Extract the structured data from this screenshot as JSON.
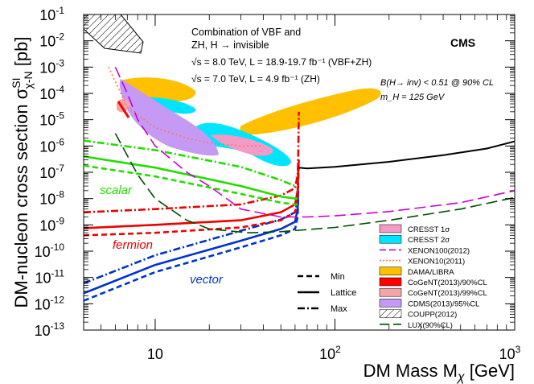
{
  "chart_data": {
    "type": "line",
    "title": "CMS",
    "xlabel": "DM Mass M_χ [GeV]",
    "ylabel": "DM-nucleon cross section σ^SI_χ-N [pb]",
    "xscale": "log",
    "yscale": "log",
    "xlim": [
      4,
      1000
    ],
    "ylim": [
      1e-13,
      0.1
    ],
    "x_ticks": [
      {
        "value": 10,
        "label": "10"
      },
      {
        "value": 100,
        "label": "10",
        "exp": "2"
      },
      {
        "value": 1000,
        "label": "10",
        "exp": "3"
      }
    ],
    "y_ticks": [
      {
        "value": 0.1,
        "exp": "-1"
      },
      {
        "value": 0.01,
        "exp": "-2"
      },
      {
        "value": 0.001,
        "exp": "-3"
      },
      {
        "value": 0.0001,
        "exp": "-4"
      },
      {
        "value": 1e-05,
        "exp": "-5"
      },
      {
        "value": 1e-06,
        "exp": "-6"
      },
      {
        "value": 1e-07,
        "exp": "-7"
      },
      {
        "value": 1e-08,
        "exp": "-8"
      },
      {
        "value": 1e-09,
        "exp": "-9"
      },
      {
        "value": 1e-10,
        "exp": "-10"
      },
      {
        "value": 1e-11,
        "exp": "-11"
      },
      {
        "value": 1e-12,
        "exp": "-12"
      },
      {
        "value": 1e-13,
        "exp": "-13"
      }
    ],
    "annotations": {
      "combo_line1": "Combination of VBF and",
      "combo_line2": "ZH, H → invisible",
      "energy8": "√s = 8.0 TeV, L = 18.9-19.7 fb⁻¹ (VBF+ZH)",
      "energy7": "√s = 7.0 TeV, L = 4.9 fb⁻¹ (ZH)",
      "bf": "B(H→ inv) < 0.51 @ 90% CL",
      "mh": "m_H = 125 GeV",
      "scalar": "scalar",
      "fermion": "fermion",
      "vector": "vector"
    },
    "style_legend": [
      {
        "name": "Min",
        "dash": "dashed"
      },
      {
        "name": "Lattice",
        "dash": "solid"
      },
      {
        "name": "Max",
        "dash": "dashdot"
      }
    ],
    "legend": [
      {
        "name": "CRESST 1σ",
        "kind": "box",
        "color": "#f39bc6"
      },
      {
        "name": "CRESST 2σ",
        "kind": "box",
        "color": "#00e5ff"
      },
      {
        "name": "XENON100(2012)",
        "kind": "dashline",
        "color": "#cc00cc"
      },
      {
        "name": "XENON10(2011)",
        "kind": "dotline",
        "color": "#ff7755"
      },
      {
        "name": "DAMA/LIBRA",
        "kind": "box",
        "color": "#ffc000"
      },
      {
        "name": "CoGeNT(2013)/90%CL",
        "kind": "box",
        "color": "#ff0000"
      },
      {
        "name": "CoGeNT(2013)/99%CL",
        "kind": "box",
        "color": "#f4a6a6"
      },
      {
        "name": "CDMS(2013)/95%CL",
        "kind": "box",
        "color": "#c49af5"
      },
      {
        "name": "COUPP(2012)",
        "kind": "hatch",
        "color": "#000000"
      },
      {
        "name": "LUX(90%CL)",
        "kind": "longdash",
        "color": "#004d00"
      }
    ],
    "series": [
      {
        "name": "vector lattice",
        "color": "#0033cc",
        "dash": "solid",
        "x": [
          4,
          10,
          30,
          50,
          60,
          62,
          62.5
        ],
        "y": [
          2.5e-12,
          3e-11,
          2.5e-10,
          7e-10,
          1.3e-09,
          4e-09,
          2e-08
        ]
      },
      {
        "name": "vector min",
        "color": "#0033cc",
        "dash": "dashed",
        "x": [
          4,
          10,
          30,
          50,
          60,
          62,
          62.5
        ],
        "y": [
          1.3e-12,
          1.6e-11,
          1.4e-10,
          4e-10,
          7e-10,
          2e-09,
          1e-08
        ]
      },
      {
        "name": "vector max",
        "color": "#0033cc",
        "dash": "dashdot",
        "x": [
          4,
          10,
          30,
          50,
          60,
          62,
          62.5
        ],
        "y": [
          6e-12,
          7e-11,
          6e-10,
          1.6e-09,
          3e-09,
          9e-09,
          5e-08
        ]
      },
      {
        "name": "fermion lattice",
        "color": "#ee0000",
        "dash": "solid",
        "x": [
          4,
          10,
          30,
          50,
          60,
          62,
          62.5,
          63
        ],
        "y": [
          7.5e-10,
          1e-09,
          1.5e-09,
          3e-09,
          6e-09,
          2e-08,
          1e-07,
          3e-07
        ]
      },
      {
        "name": "fermion min",
        "color": "#ee0000",
        "dash": "dashed",
        "x": [
          4,
          10,
          30,
          50,
          60,
          62,
          62.5,
          63
        ],
        "y": [
          4e-10,
          5e-10,
          8e-10,
          1.5e-09,
          3e-09,
          1e-08,
          5e-08,
          1.5e-07
        ]
      },
      {
        "name": "fermion max",
        "color": "#ee0000",
        "dash": "dashdot",
        "x": [
          4,
          10,
          30,
          50,
          60,
          62,
          62.5,
          63
        ],
        "y": [
          3e-09,
          4e-09,
          6e-09,
          1.3e-08,
          2.5e-08,
          8e-08,
          4e-07,
          2e-05
        ]
      },
      {
        "name": "scalar lattice",
        "color": "#22dd00",
        "dash": "solid",
        "x": [
          4,
          10,
          30,
          50,
          60,
          62
        ],
        "y": [
          4e-07,
          1.5e-07,
          3e-08,
          1.2e-08,
          1e-08,
          1e-08
        ]
      },
      {
        "name": "scalar min",
        "color": "#22dd00",
        "dash": "dashed",
        "x": [
          4,
          10,
          30,
          50,
          60,
          62
        ],
        "y": [
          1.8e-07,
          7e-08,
          1.5e-08,
          7e-09,
          6e-09,
          6e-09
        ]
      },
      {
        "name": "scalar max",
        "color": "#22dd00",
        "dash": "dashdot",
        "x": [
          4,
          10,
          30,
          50,
          60,
          62
        ],
        "y": [
          1.6e-06,
          7e-07,
          1.6e-07,
          5e-08,
          3e-08,
          3e-08
        ]
      },
      {
        "name": "CMS combination limit",
        "color": "#000000",
        "dash": "solid",
        "x": [
          63,
          70,
          100,
          200,
          400,
          700,
          1000
        ],
        "y": [
          1.5e-07,
          1.4e-07,
          1.6e-07,
          2.5e-07,
          4.5e-07,
          8e-07,
          1.5e-06
        ]
      },
      {
        "name": "XENON100(2012)",
        "color": "#cc00cc",
        "dash": "longdash",
        "x": [
          6,
          7,
          8,
          10,
          15,
          20,
          30,
          50,
          70,
          100,
          200,
          500,
          1000
        ],
        "y": [
          0.001,
          0.0001,
          1e-05,
          1e-06,
          1e-07,
          3e-08,
          4e-09,
          2e-09,
          2e-09,
          2.2e-09,
          3.2e-09,
          7e-09,
          2e-08
        ]
      },
      {
        "name": "XENON10(2011)",
        "color": "#ff7755",
        "dash": "dotted",
        "x": [
          5.5,
          7,
          10,
          15,
          20,
          30,
          40
        ],
        "y": [
          0.001,
          3e-05,
          5e-06,
          2e-06,
          1.3e-06,
          1e-06,
          1e-06
        ]
      },
      {
        "name": "LUX(90%CL)",
        "color": "#004d00",
        "dash": "longdash",
        "x": [
          6,
          8,
          10,
          15,
          20,
          33,
          50,
          100,
          200,
          500,
          1000
        ],
        "y": [
          3e-06,
          8e-08,
          1e-08,
          1.5e-09,
          7e-10,
          5e-10,
          5.5e-10,
          8e-10,
          1.5e-09,
          4e-09,
          1.1e-08
        ]
      }
    ]
  }
}
